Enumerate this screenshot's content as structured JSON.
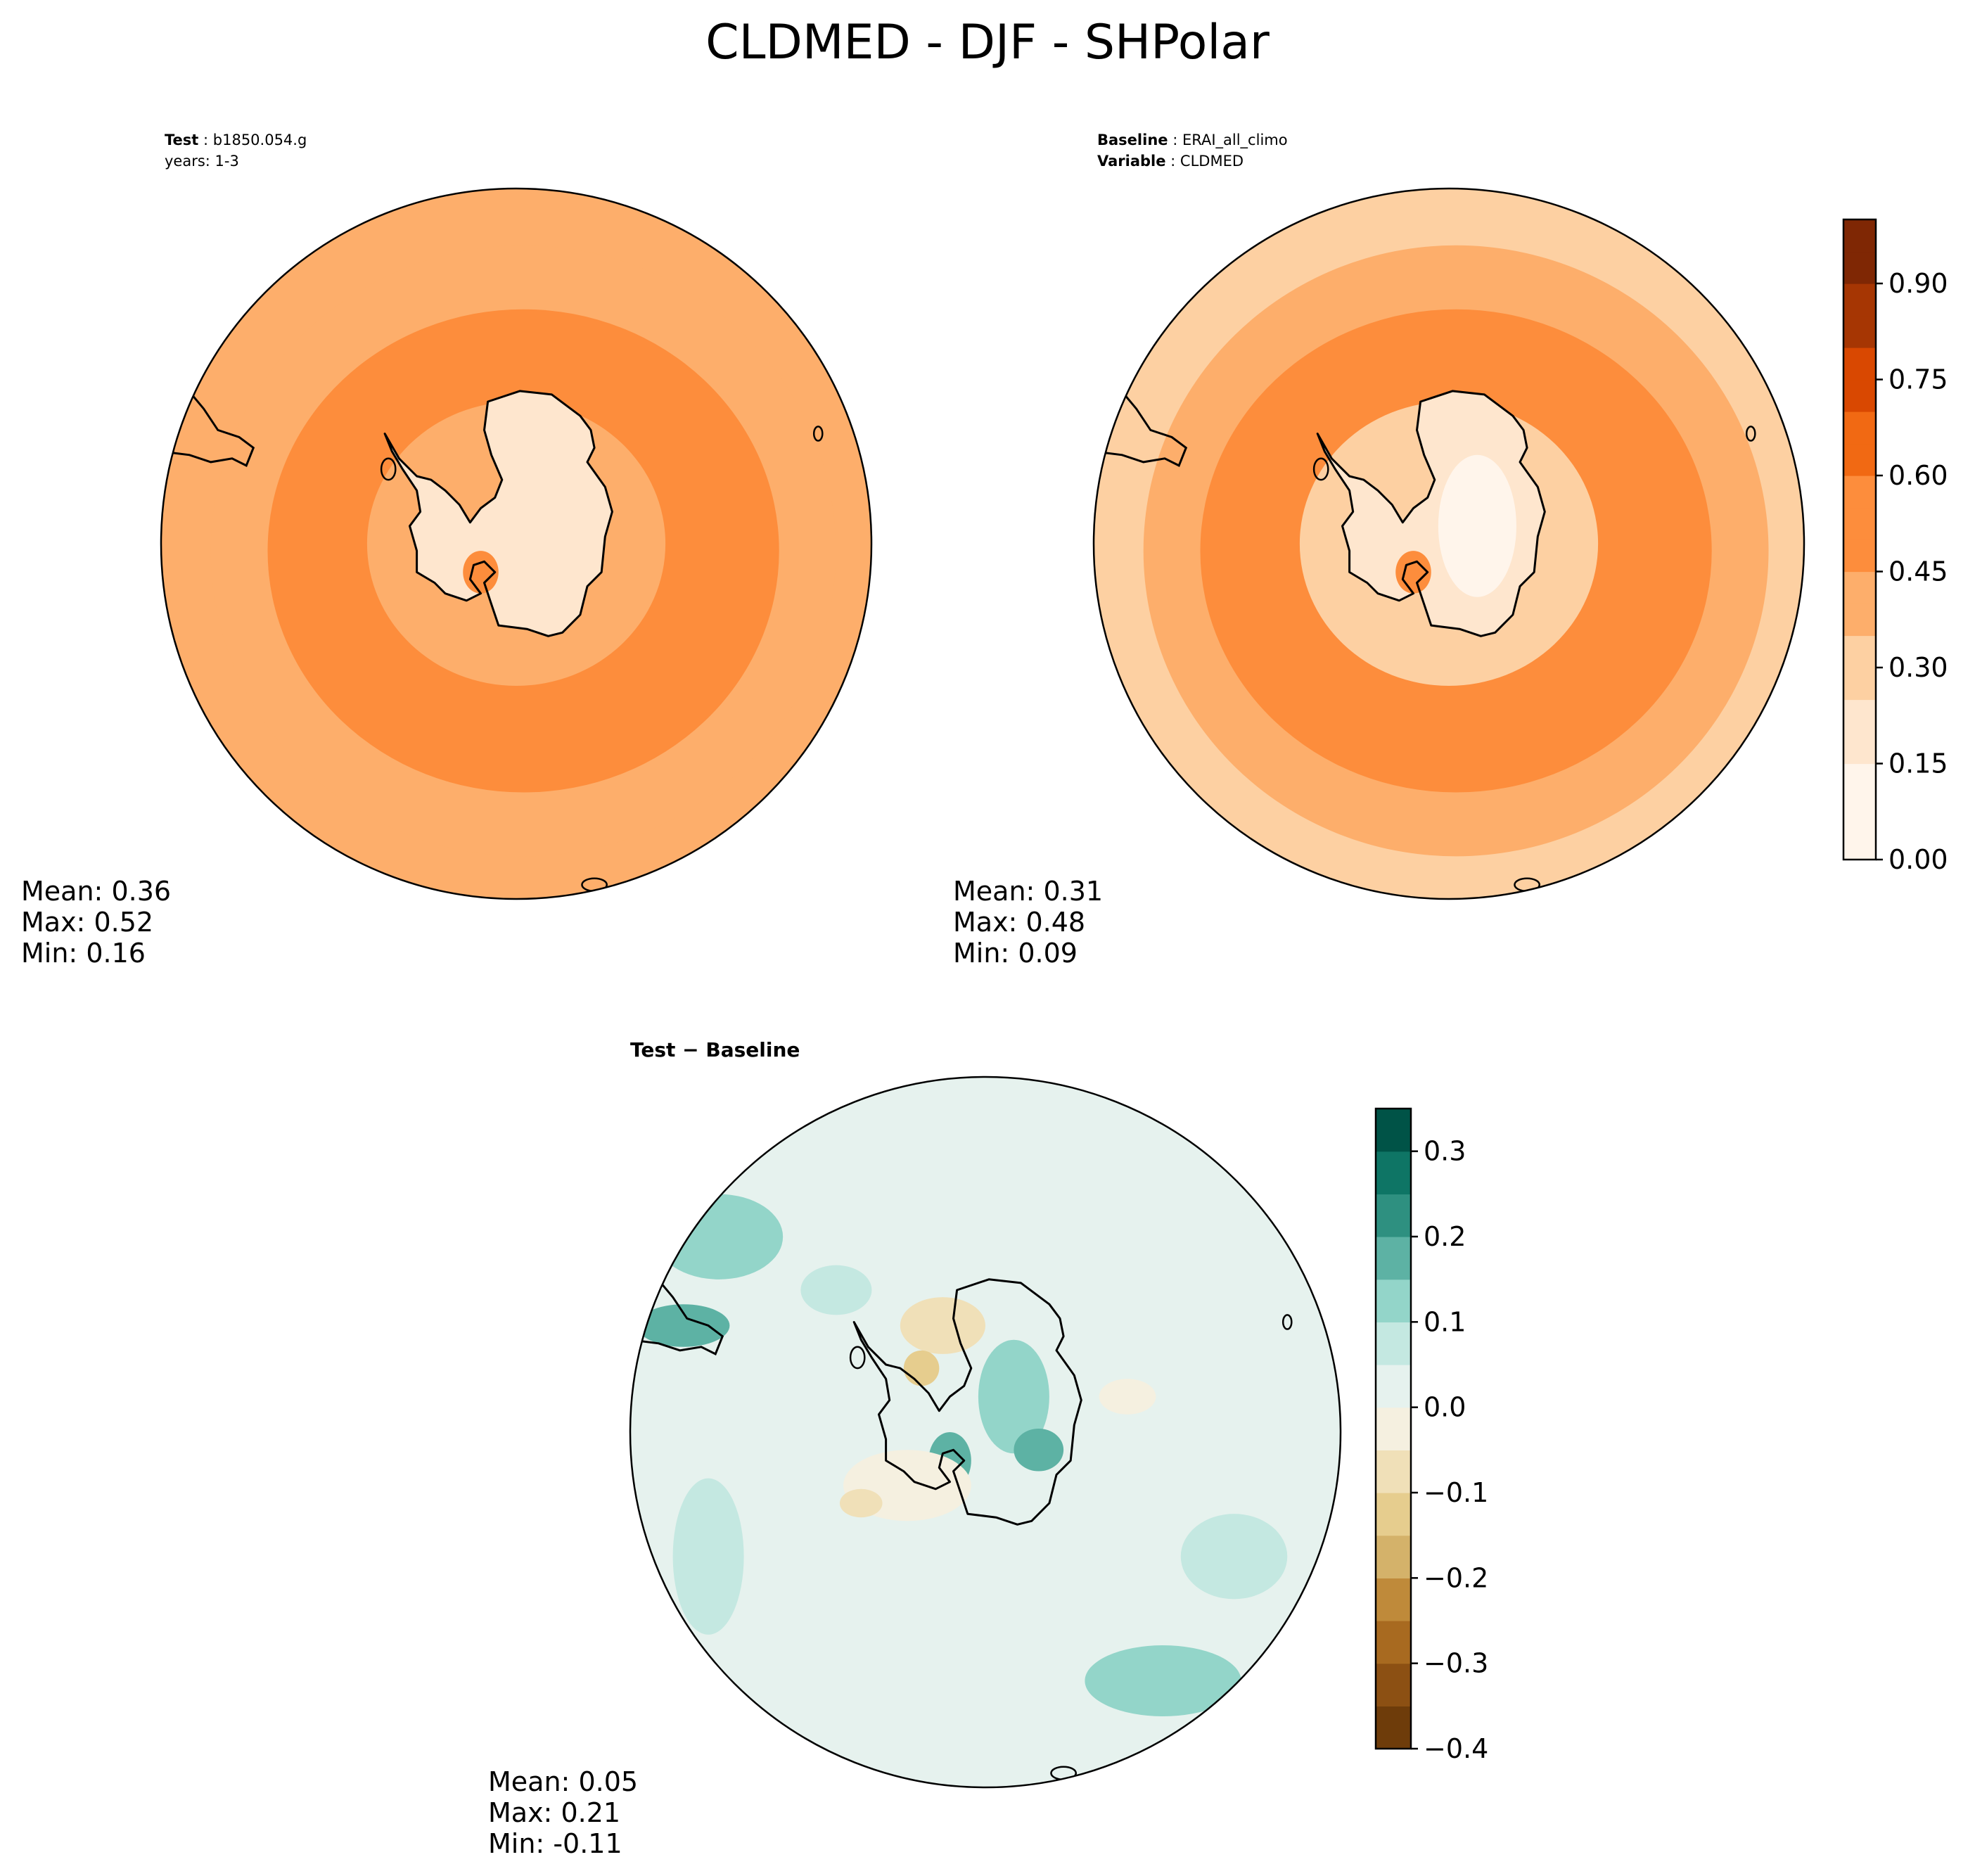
{
  "figure": {
    "title": "CLDMED - DJF - SHPolar"
  },
  "chart_data": [
    {
      "type": "heatmap",
      "projection": "south-polar-stereographic",
      "panel": "test",
      "caption": {
        "label1": "Test",
        "value1": "b1850.054.g",
        "line2": "years: 1-3"
      },
      "stats": [
        {
          "label": "Mean:",
          "value": "0.36"
        },
        {
          "label": "Max:",
          "value": "0.52"
        },
        {
          "label": "Min:",
          "value": "0.16"
        }
      ],
      "field": {
        "ocean": 0.35,
        "ring": 0.4,
        "interior": 0.14,
        "hotspot": 0.46
      },
      "colormap": "Oranges",
      "range": [
        0.0,
        1.0
      ]
    },
    {
      "type": "heatmap",
      "projection": "south-polar-stereographic",
      "panel": "baseline",
      "caption": {
        "label1": "Baseline",
        "value1": "ERAI_all_climo",
        "label2": "Variable",
        "value2": "CLDMED"
      },
      "stats": [
        {
          "label": "Mean:",
          "value": "0.31"
        },
        {
          "label": "Max:",
          "value": "0.48"
        },
        {
          "label": "Min:",
          "value": "0.09"
        }
      ],
      "field": {
        "ocean": 0.22,
        "ring": 0.4,
        "interior": 0.09,
        "hotspot": 0.4
      },
      "colormap": "Oranges",
      "range": [
        0.0,
        1.0
      ],
      "colorbar": {
        "vmin": 0.0,
        "vmax": 1.0,
        "levels": 20,
        "ticks": [
          0.0,
          0.15,
          0.3,
          0.45,
          0.6,
          0.75,
          0.9
        ],
        "tick_labels": [
          "0.00",
          "0.15",
          "0.30",
          "0.45",
          "0.60",
          "0.75",
          "0.90"
        ]
      }
    },
    {
      "type": "heatmap",
      "projection": "south-polar-stereographic",
      "panel": "difference",
      "caption": {
        "title": "Test − Baseline"
      },
      "stats": [
        {
          "label": "Mean:",
          "value": "0.05"
        },
        {
          "label": "Max:",
          "value": "0.21"
        },
        {
          "label": "Min:",
          "value": "-0.11"
        }
      ],
      "colormap": "BrBG",
      "range": [
        -0.4,
        0.35
      ],
      "colorbar": {
        "vmin": -0.4,
        "vmax": 0.35,
        "levels": 15,
        "ticks": [
          -0.4,
          -0.3,
          -0.2,
          -0.1,
          0.0,
          0.1,
          0.2,
          0.3
        ],
        "tick_labels": [
          "−0.4",
          "−0.3",
          "−0.2",
          "−0.1",
          "0.0",
          "0.1",
          "0.2",
          "0.3"
        ]
      }
    }
  ],
  "colors": {
    "oranges": [
      "#fff5eb",
      "#fee6ce",
      "#fdd0a2",
      "#fdae6b",
      "#fd8d3c",
      "#f16913",
      "#d94801",
      "#a63603",
      "#7f2704"
    ],
    "brbg_neg": [
      "#f5f0e0",
      "#f0e0b8",
      "#e6cd8e",
      "#d4b26a",
      "#bf8a3a",
      "#a86a20",
      "#8c5013",
      "#6e3c0a",
      "#543005"
    ],
    "brbg_pos": [
      "#e6f2ee",
      "#c4e8e1",
      "#93d5c9",
      "#5db2a4",
      "#2e9080",
      "#0e7565",
      "#005347"
    ]
  }
}
